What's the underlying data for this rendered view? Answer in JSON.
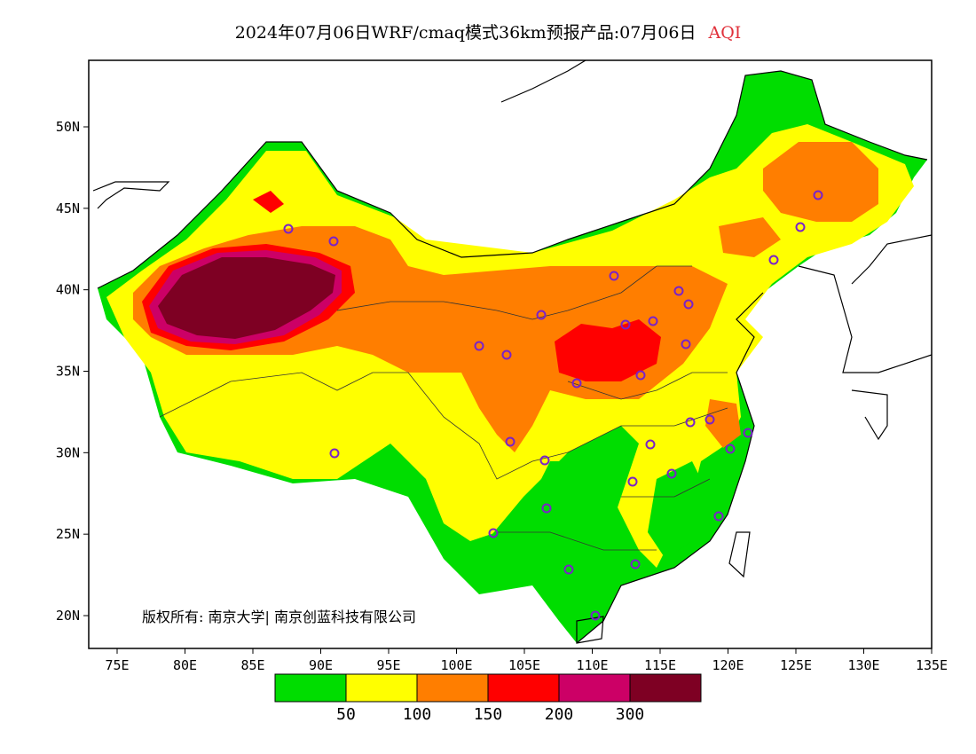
{
  "title": {
    "main": "2024年07月06日WRF/cmaq模式36km预报产品:07月06日",
    "field": "AQI",
    "field_color": "#e0303a"
  },
  "axes": {
    "x_ticks": [
      "75E",
      "80E",
      "85E",
      "90E",
      "95E",
      "100E",
      "105E",
      "110E",
      "115E",
      "120E",
      "125E",
      "130E",
      "135E"
    ],
    "y_ticks": [
      "50N",
      "45N",
      "40N",
      "35N",
      "30N",
      "25N",
      "20N"
    ]
  },
  "copyright": "版权所有: 南京大学| 南京创蓝科技有限公司",
  "legend": {
    "colors": [
      "#00dd00",
      "#ffff00",
      "#ff7e00",
      "#ff0000",
      "#cc0066",
      "#7e0023"
    ],
    "labels": [
      "50",
      "100",
      "150",
      "200",
      "300"
    ]
  },
  "colors": {
    "border": "#000000",
    "station_marker": "#7a22c8"
  }
}
